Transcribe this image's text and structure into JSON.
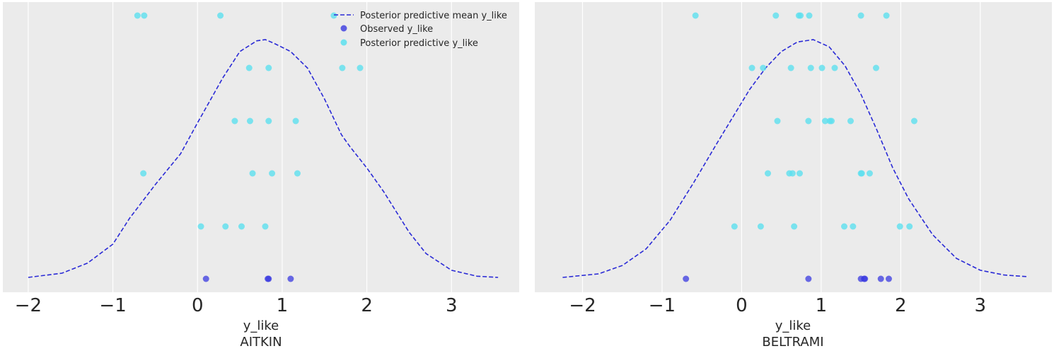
{
  "chart_data": [
    {
      "type": "scatter",
      "title": "",
      "xlabel": "y_like",
      "group_label": "AITKIN",
      "xlim": [
        -2.3,
        3.8
      ],
      "xticks": [
        -2,
        -1,
        0,
        1,
        2,
        3
      ],
      "tick_labels": [
        "−2",
        "−1",
        "0",
        "1",
        "2",
        "3"
      ],
      "grid": true,
      "legend_position": "top-right",
      "legend": [
        {
          "key": "mean",
          "label": "Posterior predictive mean y_like"
        },
        {
          "key": "observed",
          "label": "Observed y_like"
        },
        {
          "key": "predictive",
          "label": "Posterior predictive y_like"
        }
      ],
      "observed": [
        0.1,
        0.83,
        0.84,
        1.1
      ],
      "predictive_rows": [
        [
          0.04,
          0.33,
          0.52,
          0.8
        ],
        [
          -0.64,
          0.65,
          0.88,
          1.18
        ],
        [
          0.44,
          0.62,
          0.84,
          1.16
        ],
        [
          0.61,
          0.84,
          1.71,
          1.92
        ],
        [
          -0.71,
          -0.63,
          0.27,
          1.61
        ]
      ],
      "mean_curve": {
        "x": [
          -2.0,
          -1.6,
          -1.3,
          -1.0,
          -0.8,
          -0.5,
          -0.2,
          0.0,
          0.3,
          0.5,
          0.7,
          0.8,
          0.9,
          1.1,
          1.3,
          1.5,
          1.7,
          1.8,
          2.0,
          2.2,
          2.5,
          2.7,
          3.0,
          3.3,
          3.55
        ],
        "y": [
          0.0,
          0.018,
          0.06,
          0.14,
          0.25,
          0.39,
          0.52,
          0.65,
          0.84,
          0.95,
          0.995,
          1.0,
          0.985,
          0.95,
          0.88,
          0.75,
          0.6,
          0.55,
          0.46,
          0.36,
          0.19,
          0.1,
          0.03,
          0.005,
          0.0
        ]
      }
    },
    {
      "type": "scatter",
      "title": "",
      "xlabel": "y_like",
      "group_label": "BELTRAMI",
      "xlim": [
        -2.6,
        3.9
      ],
      "xticks": [
        -2,
        -1,
        0,
        1,
        2,
        3
      ],
      "tick_labels": [
        "−2",
        "−1",
        "0",
        "1",
        "2",
        "3"
      ],
      "grid": true,
      "legend_position": "none",
      "observed": [
        -0.7,
        0.84,
        1.5,
        1.54,
        1.55,
        1.75,
        1.85
      ],
      "predictive_rows": [
        [
          -0.09,
          0.24,
          0.66,
          1.29,
          1.4,
          1.99,
          2.11
        ],
        [
          0.33,
          0.6,
          0.64,
          0.73,
          1.5,
          1.51,
          1.61
        ],
        [
          0.45,
          0.84,
          1.05,
          1.11,
          1.13,
          1.37,
          2.17
        ],
        [
          0.13,
          0.27,
          0.62,
          0.87,
          1.01,
          1.17,
          1.69
        ],
        [
          -0.58,
          0.43,
          0.72,
          0.74,
          0.85,
          1.5,
          1.82
        ]
      ],
      "mean_curve": {
        "x": [
          -2.25,
          -1.8,
          -1.5,
          -1.2,
          -0.9,
          -0.6,
          -0.3,
          -0.1,
          0.1,
          0.3,
          0.5,
          0.7,
          0.9,
          1.1,
          1.3,
          1.5,
          1.7,
          1.9,
          2.1,
          2.4,
          2.7,
          3.0,
          3.3,
          3.6
        ],
        "y": [
          0.0,
          0.015,
          0.05,
          0.12,
          0.24,
          0.4,
          0.57,
          0.68,
          0.79,
          0.88,
          0.95,
          0.99,
          1.0,
          0.97,
          0.89,
          0.77,
          0.62,
          0.46,
          0.33,
          0.18,
          0.08,
          0.03,
          0.01,
          0.003
        ]
      }
    }
  ],
  "colors": {
    "mean_line": "#2a2ad6",
    "observed": "#3a3ae0",
    "predictive": "#5ce0ef",
    "panel_bg": "#ebebeb",
    "grid": "#ffffff"
  }
}
